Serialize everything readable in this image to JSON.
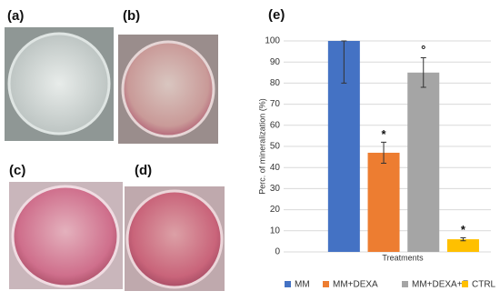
{
  "panels": [
    "(a)",
    "(b)",
    "(c)",
    "(d)"
  ],
  "chart_data": {
    "type": "bar",
    "panel_label": "(e)",
    "ylabel": "Perc. of mineralization (%)",
    "xlabel": "Treatments",
    "categories": [
      "MM",
      "MM+DEXA",
      "MM+DEXA+E",
      "CTRL"
    ],
    "values": [
      100,
      47,
      85,
      6
    ],
    "errors": [
      20,
      5,
      7,
      0.7
    ],
    "markers": [
      null,
      "*",
      "°",
      "*"
    ],
    "colors": [
      "#4472c4",
      "#ed7d31",
      "#a5a5a5",
      "#ffc000"
    ],
    "ylim": [
      0,
      100
    ],
    "yticks": [
      0,
      10,
      20,
      30,
      40,
      50,
      60,
      70,
      80,
      90,
      100
    ],
    "grid": true,
    "legend": "bottom"
  }
}
